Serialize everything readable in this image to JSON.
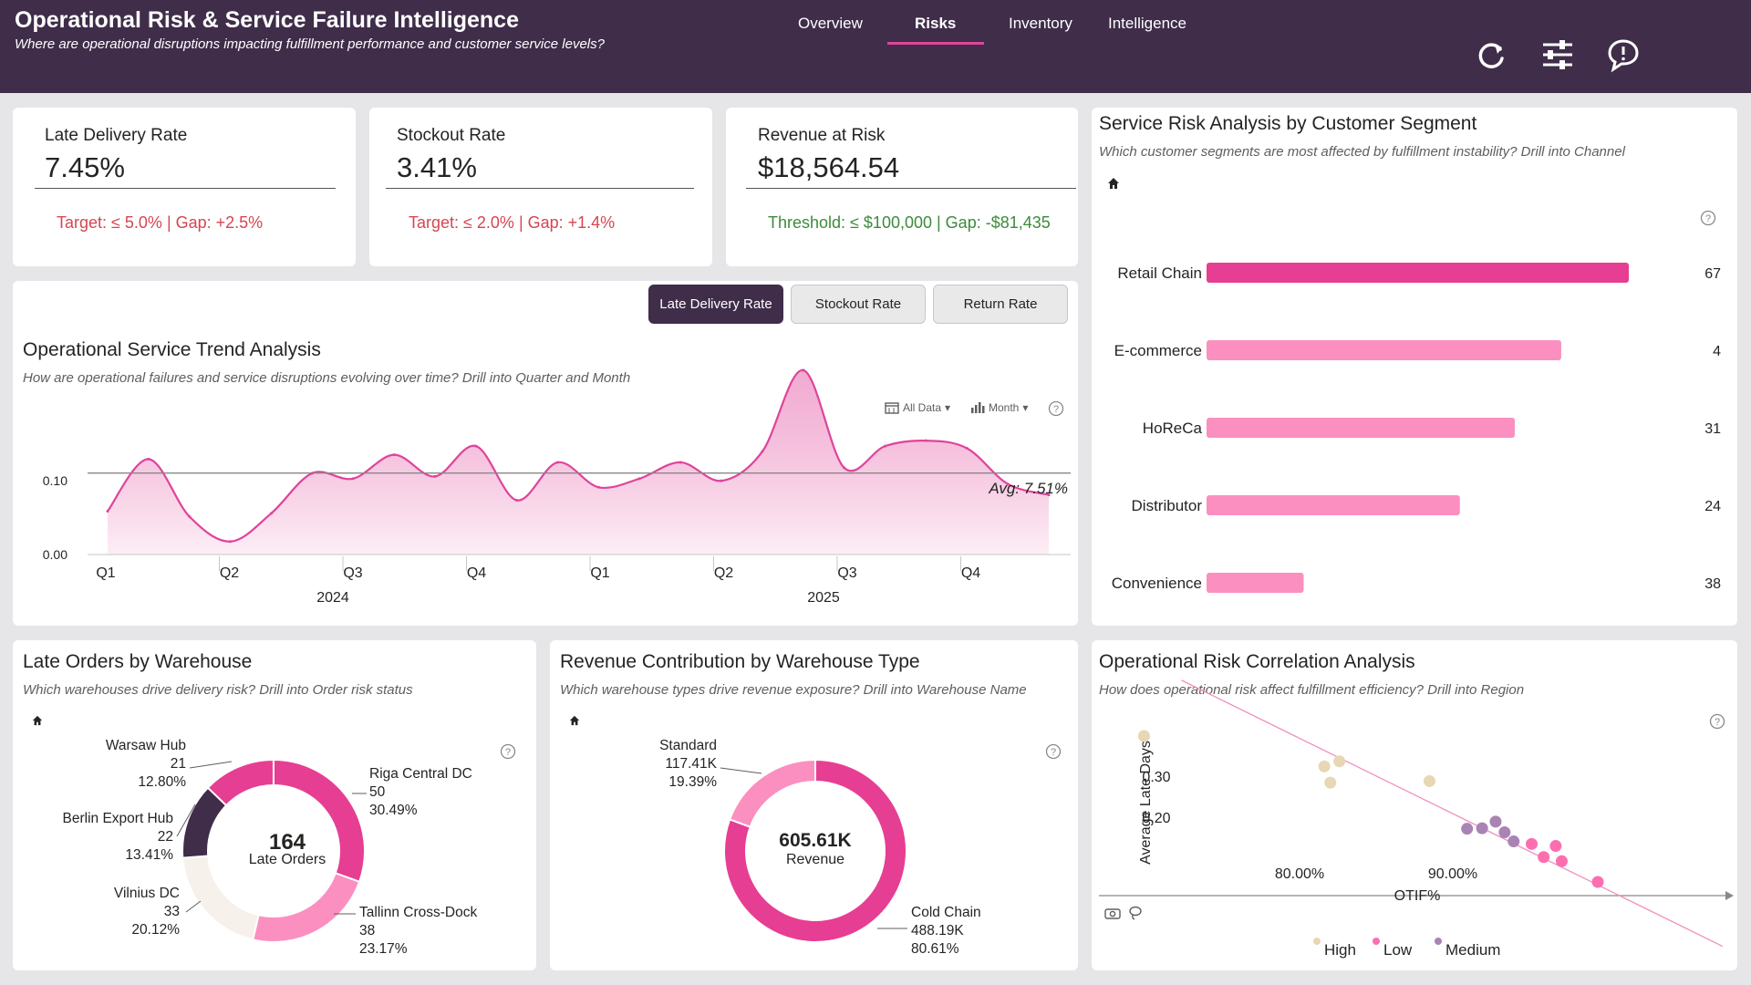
{
  "header": {
    "title": "Operational Risk & Service Failure Intelligence",
    "subtitle": "Where are operational disruptions impacting fulfillment performance and customer service levels?",
    "nav": [
      "Overview",
      "Risks",
      "Inventory",
      "Intelligence"
    ],
    "active_tab": "Risks"
  },
  "kpis": [
    {
      "label": "Late Delivery Rate",
      "value": "7.45%",
      "note": "Target: ≤ 5.0% | Gap: +2.5%",
      "status_color": "#d64550"
    },
    {
      "label": "Stockout Rate",
      "value": "3.41%",
      "note": "Target: ≤ 2.0% | Gap: +1.4%",
      "status_color": "#d64550"
    },
    {
      "label": "Revenue at Risk",
      "value": "$18,564.54",
      "note": "Threshold: ≤ $100,000 | Gap: -$81,435",
      "status_color": "#3c8b3a"
    }
  ],
  "trend": {
    "buttons": [
      "Late Delivery Rate",
      "Stockout Rate",
      "Return Rate"
    ],
    "active_button": "Late Delivery Rate",
    "title": "Operational Service Trend Analysis",
    "subtitle": "How are operational failures and service disruptions evolving over time? Drill into Quarter and Month",
    "filter_data": "All Data",
    "filter_period": "Month",
    "avg_label": "Avg: 7.51%"
  },
  "segment": {
    "title": "Service Risk Analysis by Customer Segment",
    "subtitle": "Which customer segments are most affected by fulfillment instability? Drill into Channel"
  },
  "warehouse": {
    "title": "Late Orders by Warehouse",
    "subtitle": "Which warehouses drive delivery risk? Drill into Order risk status",
    "center_value": "164",
    "center_label": "Late Orders"
  },
  "wtype": {
    "title": "Revenue Contribution by Warehouse Type",
    "subtitle": "Which warehouse types drive revenue exposure? Drill into Warehouse Name",
    "center_value": "605.61K",
    "center_label": "Revenue"
  },
  "correlation": {
    "title": "Operational Risk Correlation Analysis",
    "subtitle": "How does operational risk affect fulfillment efficiency? Drill into Region"
  },
  "colors": {
    "header": "#3f2d49",
    "accent": "#e0439a",
    "pink_light": "#fb8fc0",
    "beige": "#e8d7b4",
    "purple": "#a884b4"
  },
  "chart_data": [
    {
      "type": "area",
      "x": [
        "2024-01",
        "2024-02",
        "2024-03",
        "2024-04",
        "2024-05",
        "2024-06",
        "2024-07",
        "2024-08",
        "2024-09",
        "2024-10",
        "2024-11",
        "2024-12",
        "2025-01",
        "2025-02",
        "2025-03",
        "2025-04",
        "2025-05",
        "2025-06",
        "2025-07",
        "2025-08",
        "2025-09",
        "2025-10",
        "2025-11",
        "2025-12"
      ],
      "values": [
        0.04,
        0.088,
        0.035,
        0.012,
        0.038,
        0.075,
        0.07,
        0.092,
        0.072,
        0.1,
        0.05,
        0.085,
        0.062,
        0.07,
        0.085,
        0.068,
        0.095,
        0.17,
        0.08,
        0.1,
        0.105,
        0.098,
        0.065,
        0.055
      ],
      "x_ticks": [
        "Q1",
        "Q2",
        "Q3",
        "Q4",
        "Q1",
        "Q2",
        "Q3",
        "Q4"
      ],
      "x_groups": [
        "2024",
        "2025"
      ],
      "y_ticks": [
        "0.00",
        "0.10"
      ],
      "ylim": [
        0,
        0.18
      ],
      "average": 0.0751
    },
    {
      "type": "bar",
      "categories": [
        "Retail Chain",
        "E-commerce",
        "HoReCa",
        "Distributor",
        "Convenience"
      ],
      "values": [
        67,
        4,
        31,
        24,
        38
      ],
      "bar_lengths": [
        1.0,
        0.84,
        0.73,
        0.6,
        0.23
      ]
    },
    {
      "type": "pie",
      "slices": [
        {
          "label": "Riga Central DC",
          "value": "50",
          "pct": "30.49%",
          "share": 0.3049,
          "color": "#e63e93"
        },
        {
          "label": "Tallinn Cross-Dock",
          "value": "38",
          "pct": "23.17%",
          "share": 0.2317,
          "color": "#fb8fc0"
        },
        {
          "label": "Vilnius DC",
          "value": "33",
          "pct": "20.12%",
          "share": 0.2012,
          "color": "#f6f1ea"
        },
        {
          "label": "Berlin Export Hub",
          "value": "22",
          "pct": "13.41%",
          "share": 0.1341,
          "color": "#3f2d49"
        },
        {
          "label": "Warsaw Hub",
          "value": "21",
          "pct": "12.80%",
          "share": 0.128,
          "color": "#e63e93"
        }
      ]
    },
    {
      "type": "pie",
      "slices": [
        {
          "label": "Cold Chain",
          "value": "488.19K",
          "pct": "80.61%",
          "share": 0.8061,
          "color": "#e63e93"
        },
        {
          "label": "Standard",
          "value": "117.41K",
          "pct": "19.39%",
          "share": 0.1939,
          "color": "#fb8fc0"
        }
      ]
    },
    {
      "type": "scatter",
      "xlabel": "OTIF%",
      "ylabel": "Average Late Days",
      "x_ticks": [
        "80.00%",
        "90.00%"
      ],
      "y_ticks": [
        "0.20",
        "0.30"
      ],
      "legend": [
        "High",
        "Low",
        "Medium"
      ],
      "legend_colors": [
        "#e8d7b4",
        "#fb6fb1",
        "#a884b4"
      ],
      "xlim": [
        69,
        111
      ],
      "ylim": [
        0.02,
        0.38
      ],
      "points": [
        {
          "x": 72.0,
          "y": 0.335,
          "g": 0
        },
        {
          "x": 84.0,
          "y": 0.275,
          "g": 0
        },
        {
          "x": 85.0,
          "y": 0.285,
          "g": 0
        },
        {
          "x": 84.4,
          "y": 0.243,
          "g": 0
        },
        {
          "x": 91.0,
          "y": 0.246,
          "g": 0
        },
        {
          "x": 93.5,
          "y": 0.152,
          "g": 2
        },
        {
          "x": 94.5,
          "y": 0.153,
          "g": 2
        },
        {
          "x": 95.4,
          "y": 0.166,
          "g": 2
        },
        {
          "x": 96.0,
          "y": 0.145,
          "g": 2
        },
        {
          "x": 96.6,
          "y": 0.127,
          "g": 2
        },
        {
          "x": 97.8,
          "y": 0.122,
          "g": 1
        },
        {
          "x": 98.6,
          "y": 0.096,
          "g": 1
        },
        {
          "x": 99.4,
          "y": 0.118,
          "g": 1
        },
        {
          "x": 99.8,
          "y": 0.088,
          "g": 1
        },
        {
          "x": 102.2,
          "y": 0.047,
          "g": 1
        }
      ],
      "trend_line": [
        [
          74.5,
          0.445
        ],
        [
          110.5,
          -0.08
        ]
      ]
    }
  ]
}
